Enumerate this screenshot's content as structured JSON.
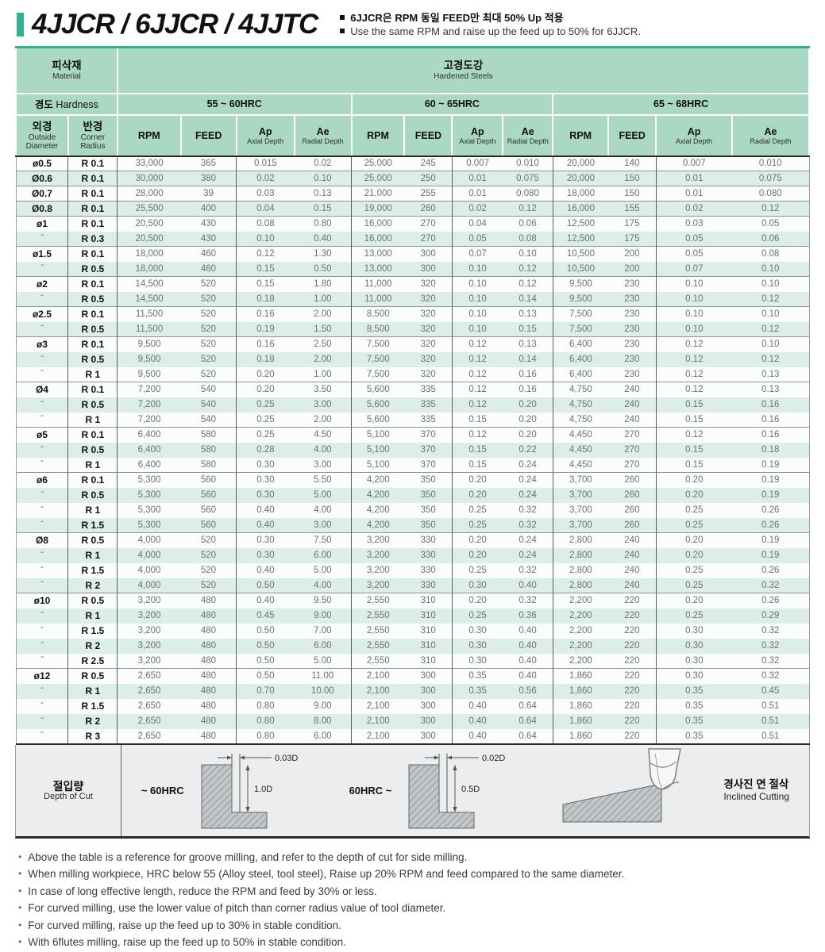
{
  "colors": {
    "accent_green": "#2eb38e",
    "header_mint": "#abd8c3",
    "stripe_green": "#ddeee6",
    "band_gray": "#ecedee",
    "number_gray": "#6c7274",
    "border_dark": "#2b2b2b"
  },
  "title": {
    "heading": "4JJCR / 6JJCR / 4JJTC",
    "note_kr": "6JJCR은 RPM 동일 FEED만 최대 50% Up 적용",
    "note_en": "Use the same RPM and raise up the feed up to 50% for 6JJCR."
  },
  "table": {
    "material_label_kr": "피삭재",
    "material_label_en": "Material",
    "material_value_kr": "고경도강",
    "material_value_en": "Hardened Steels",
    "hardness_label_kr": "경도",
    "hardness_label_en": "Hardness",
    "hardness_ranges": [
      "55 ~ 60HRC",
      "60 ~ 65HRC",
      "65 ~ 68HRC"
    ],
    "col_headers": {
      "diameter_kr": "외경",
      "diameter_en1": "Outside",
      "diameter_en2": "Diameter",
      "radius_kr": "반경",
      "radius_en1": "Corner",
      "radius_en2": "Radius",
      "rpm": "RPM",
      "feed": "FEED",
      "ap": "Ap",
      "ap_sub": "Axial Depth",
      "ae": "Ae",
      "ae_sub": "Radial Depth"
    },
    "ditto": "˝",
    "groups": [
      {
        "dia": "ø0.5",
        "rows": [
          {
            "r": "R 0.1",
            "v": [
              "33,000",
              "365",
              "0.015",
              "0.02",
              "25,000",
              "245",
              "0.007",
              "0.010",
              "20,000",
              "140",
              "0.007",
              "0.010"
            ]
          }
        ]
      },
      {
        "dia": "Ø0.6",
        "rows": [
          {
            "r": "R 0.1",
            "v": [
              "30,000",
              "380",
              "0.02",
              "0.10",
              "25,000",
              "250",
              "0.01",
              "0.075",
              "20,000",
              "150",
              "0.01",
              "0.075"
            ]
          }
        ]
      },
      {
        "dia": "Ø0.7",
        "rows": [
          {
            "r": "R 0.1",
            "v": [
              "28,000",
              "39",
              "0.03",
              "0.13",
              "21,000",
              "255",
              "0.01",
              "0.080",
              "18,000",
              "150",
              "0.01",
              "0.080"
            ]
          }
        ]
      },
      {
        "dia": "Ø0.8",
        "rows": [
          {
            "r": "R 0.1",
            "v": [
              "25,500",
              "400",
              "0.04",
              "0.15",
              "19,000",
              "260",
              "0.02",
              "0.12",
              "16,000",
              "155",
              "0.02",
              "0.12"
            ]
          }
        ]
      },
      {
        "dia": "ø1",
        "rows": [
          {
            "r": "R 0.1",
            "v": [
              "20,500",
              "430",
              "0.08",
              "0.80",
              "16,000",
              "270",
              "0.04",
              "0.06",
              "12,500",
              "175",
              "0.03",
              "0.05"
            ]
          },
          {
            "r": "R 0.3",
            "v": [
              "20,500",
              "430",
              "0.10",
              "0.40",
              "16,000",
              "270",
              "0.05",
              "0.08",
              "12,500",
              "175",
              "0.05",
              "0.06"
            ]
          }
        ]
      },
      {
        "dia": "ø1.5",
        "rows": [
          {
            "r": "R 0.1",
            "v": [
              "18,000",
              "460",
              "0.12",
              "1.30",
              "13,000",
              "300",
              "0.07",
              "0.10",
              "10,500",
              "200",
              "0.05",
              "0.08"
            ]
          },
          {
            "r": "R 0.5",
            "v": [
              "18,000",
              "460",
              "0.15",
              "0.50",
              "13,000",
              "300",
              "0.10",
              "0.12",
              "10,500",
              "200",
              "0.07",
              "0.10"
            ]
          }
        ]
      },
      {
        "dia": "ø2",
        "rows": [
          {
            "r": "R 0.1",
            "v": [
              "14,500",
              "520",
              "0.15",
              "1.80",
              "11,000",
              "320",
              "0.10",
              "0.12",
              "9,500",
              "230",
              "0.10",
              "0.10"
            ]
          },
          {
            "r": "R 0.5",
            "v": [
              "14,500",
              "520",
              "0.18",
              "1.00",
              "11,000",
              "320",
              "0.10",
              "0.14",
              "9,500",
              "230",
              "0.10",
              "0.12"
            ]
          }
        ]
      },
      {
        "dia": "ø2.5",
        "rows": [
          {
            "r": "R 0.1",
            "v": [
              "11,500",
              "520",
              "0.16",
              "2.00",
              "8,500",
              "320",
              "0.10",
              "0.13",
              "7,500",
              "230",
              "0.10",
              "0.10"
            ]
          },
          {
            "r": "R 0.5",
            "v": [
              "11,500",
              "520",
              "0.19",
              "1.50",
              "8,500",
              "320",
              "0.10",
              "0.15",
              "7,500",
              "230",
              "0.10",
              "0.12"
            ]
          }
        ]
      },
      {
        "dia": "ø3",
        "rows": [
          {
            "r": "R 0.1",
            "v": [
              "9,500",
              "520",
              "0.16",
              "2.50",
              "7,500",
              "320",
              "0.12",
              "0.13",
              "6,400",
              "230",
              "0.12",
              "0.10"
            ]
          },
          {
            "r": "R 0.5",
            "v": [
              "9,500",
              "520",
              "0.18",
              "2.00",
              "7,500",
              "320",
              "0.12",
              "0.14",
              "6,400",
              "230",
              "0.12",
              "0.12"
            ]
          },
          {
            "r": "R 1",
            "v": [
              "9,500",
              "520",
              "0.20",
              "1.00",
              "7,500",
              "320",
              "0.12",
              "0.16",
              "6,400",
              "230",
              "0.12",
              "0.13"
            ]
          }
        ]
      },
      {
        "dia": "Ø4",
        "rows": [
          {
            "r": "R 0.1",
            "v": [
              "7,200",
              "540",
              "0.20",
              "3.50",
              "5,600",
              "335",
              "0.12",
              "0.16",
              "4,750",
              "240",
              "0.12",
              "0.13"
            ]
          },
          {
            "r": "R 0.5",
            "v": [
              "7,200",
              "540",
              "0.25",
              "3.00",
              "5,600",
              "335",
              "0.12",
              "0.20",
              "4,750",
              "240",
              "0.15",
              "0.16"
            ]
          },
          {
            "r": "R 1",
            "v": [
              "7,200",
              "540",
              "0.25",
              "2.00",
              "5,600",
              "335",
              "0.15",
              "0.20",
              "4,750",
              "240",
              "0.15",
              "0.16"
            ]
          }
        ]
      },
      {
        "dia": "ø5",
        "rows": [
          {
            "r": "R 0.1",
            "v": [
              "6,400",
              "580",
              "0.25",
              "4.50",
              "5,100",
              "370",
              "0.12",
              "0.20",
              "4,450",
              "270",
              "0.12",
              "0.16"
            ]
          },
          {
            "r": "R 0.5",
            "v": [
              "6,400",
              "580",
              "0.28",
              "4.00",
              "5,100",
              "370",
              "0.15",
              "0.22",
              "4,450",
              "270",
              "0.15",
              "0.18"
            ]
          },
          {
            "r": "R 1",
            "v": [
              "6,400",
              "580",
              "0.30",
              "3.00",
              "5,100",
              "370",
              "0.15",
              "0.24",
              "4,450",
              "270",
              "0.15",
              "0.19"
            ]
          }
        ]
      },
      {
        "dia": "ø6",
        "rows": [
          {
            "r": "R 0.1",
            "v": [
              "5,300",
              "560",
              "0.30",
              "5.50",
              "4,200",
              "350",
              "0.20",
              "0.24",
              "3,700",
              "260",
              "0.20",
              "0.19"
            ]
          },
          {
            "r": "R 0.5",
            "v": [
              "5,300",
              "560",
              "0.30",
              "5.00",
              "4,200",
              "350",
              "0.20",
              "0.24",
              "3,700",
              "260",
              "0.20",
              "0.19"
            ]
          },
          {
            "r": "R 1",
            "v": [
              "5,300",
              "560",
              "0.40",
              "4.00",
              "4,200",
              "350",
              "0.25",
              "0.32",
              "3,700",
              "260",
              "0.25",
              "0.26"
            ]
          },
          {
            "r": "R 1.5",
            "v": [
              "5,300",
              "560",
              "0.40",
              "3.00",
              "4,200",
              "350",
              "0.25",
              "0.32",
              "3,700",
              "260",
              "0.25",
              "0.26"
            ]
          }
        ]
      },
      {
        "dia": "Ø8",
        "rows": [
          {
            "r": "R 0.5",
            "v": [
              "4,000",
              "520",
              "0.30",
              "7.50",
              "3,200",
              "330",
              "0.20",
              "0.24",
              "2,800",
              "240",
              "0.20",
              "0.19"
            ]
          },
          {
            "r": "R 1",
            "v": [
              "4,000",
              "520",
              "0.30",
              "6.00",
              "3,200",
              "330",
              "0.20",
              "0.24",
              "2,800",
              "240",
              "0.20",
              "0.19"
            ]
          },
          {
            "r": "R 1.5",
            "v": [
              "4,000",
              "520",
              "0.40",
              "5.00",
              "3,200",
              "330",
              "0.25",
              "0.32",
              "2,800",
              "240",
              "0.25",
              "0.26"
            ]
          },
          {
            "r": "R 2",
            "v": [
              "4,000",
              "520",
              "0.50",
              "4.00",
              "3,200",
              "330",
              "0.30",
              "0.40",
              "2,800",
              "240",
              "0.25",
              "0.32"
            ]
          }
        ]
      },
      {
        "dia": "ø10",
        "rows": [
          {
            "r": "R 0.5",
            "v": [
              "3,200",
              "480",
              "0.40",
              "9.50",
              "2,550",
              "310",
              "0.20",
              "0.32",
              "2,200",
              "220",
              "0.20",
              "0.26"
            ]
          },
          {
            "r": "R 1",
            "v": [
              "3,200",
              "480",
              "0.45",
              "9.00",
              "2,550",
              "310",
              "0.25",
              "0.36",
              "2,200",
              "220",
              "0.25",
              "0.29"
            ]
          },
          {
            "r": "R 1.5",
            "v": [
              "3,200",
              "480",
              "0.50",
              "7.00",
              "2,550",
              "310",
              "0.30",
              "0.40",
              "2,200",
              "220",
              "0.30",
              "0.32"
            ]
          },
          {
            "r": "R 2",
            "v": [
              "3,200",
              "480",
              "0.50",
              "6.00",
              "2,550",
              "310",
              "0.30",
              "0.40",
              "2,200",
              "220",
              "0.30",
              "0.32"
            ]
          },
          {
            "r": "R 2.5",
            "v": [
              "3,200",
              "480",
              "0.50",
              "5.00",
              "2,550",
              "310",
              "0.30",
              "0.40",
              "2,200",
              "220",
              "0.30",
              "0.32"
            ]
          }
        ]
      },
      {
        "dia": "ø12",
        "rows": [
          {
            "r": "R 0.5",
            "v": [
              "2,650",
              "480",
              "0.50",
              "11.00",
              "2,100",
              "300",
              "0.35",
              "0.40",
              "1,860",
              "220",
              "0.30",
              "0.32"
            ]
          },
          {
            "r": "R 1",
            "v": [
              "2,650",
              "480",
              "0.70",
              "10.00",
              "2,100",
              "300",
              "0.35",
              "0.56",
              "1,860",
              "220",
              "0.35",
              "0.45"
            ]
          },
          {
            "r": "R 1.5",
            "v": [
              "2,650",
              "480",
              "0.80",
              "9.00",
              "2,100",
              "300",
              "0.40",
              "0.64",
              "1,860",
              "220",
              "0.35",
              "0.51"
            ]
          },
          {
            "r": "R 2",
            "v": [
              "2,650",
              "480",
              "0.80",
              "8.00",
              "2,100",
              "300",
              "0.40",
              "0.64",
              "1,860",
              "220",
              "0.35",
              "0.51"
            ]
          },
          {
            "r": "R 3",
            "v": [
              "2,650",
              "480",
              "0.80",
              "6.00",
              "2,100",
              "300",
              "0.40",
              "0.64",
              "1,860",
              "220",
              "0.35",
              "0.51"
            ]
          }
        ]
      }
    ]
  },
  "depth_of_cut": {
    "label_kr": "절입량",
    "label_en": "Depth of Cut",
    "diagram1": {
      "hrc": "~ 60HRC",
      "width_dim": "0.03D",
      "depth_dim": "1.0D"
    },
    "diagram2": {
      "hrc": "60HRC ~",
      "width_dim": "0.02D",
      "depth_dim": "0.5D"
    },
    "inclined_kr": "경사진 면 절삭",
    "inclined_en": "Inclined Cutting"
  },
  "notes": [
    "Above the table is a reference for groove milling, and refer to the depth of cut for side milling.",
    "When milling workpiece, HRC below 55 (Alloy steel, tool steel), Raise up 20% RPM and feed compared to the same diameter.",
    "In case of long effective length, reduce the RPM and feed by 30% or less.",
    "For curved milling, use the lower value of pitch than corner radius value of tool diameter.",
    "For curved milling, raise up the feed up to 30% in stable condition.",
    "With 6flutes milling, raise up the feed up to 50% in stable condition."
  ]
}
